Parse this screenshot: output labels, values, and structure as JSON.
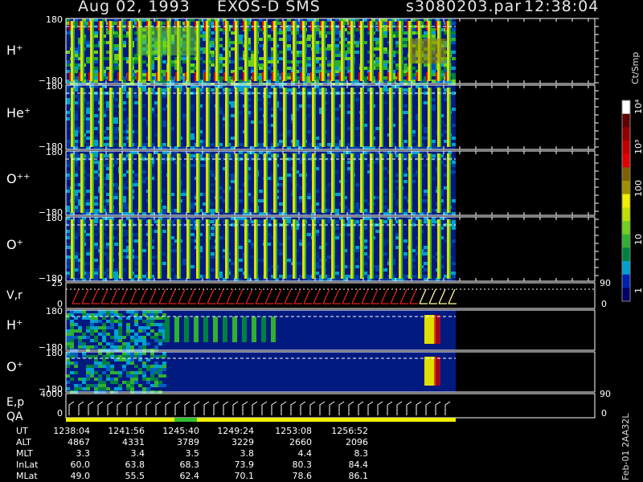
{
  "header": {
    "date": "Aug 02, 1993",
    "instrument": "EXOS-D SMS",
    "file": "s3080203.par",
    "time": "12:38:04"
  },
  "colorbar": {
    "unit": "Ct/Smp",
    "ticks": [
      "10⁴",
      "10³",
      "100",
      "10",
      "1"
    ],
    "colors": [
      "#000066",
      "#0020b0",
      "#00a0d0",
      "#008040",
      "#30b030",
      "#70d020",
      "#c0e000",
      "#f0f000",
      "#a09000",
      "#806000",
      "#e00000",
      "#c00000",
      "#900000",
      "#600000",
      "#ffffff"
    ]
  },
  "panels": {
    "h_plus": {
      "label": "H⁺",
      "ymax": "180",
      "ymin": "−180"
    },
    "he_plus": {
      "label": "He⁺",
      "ymax": "180",
      "ymin": "−180"
    },
    "o_pp": {
      "label": "O⁺⁺",
      "ymax": "180",
      "ymin": "−180"
    },
    "o_plus": {
      "label": "O⁺",
      "ymax": "180",
      "ymin": "−180"
    },
    "vr": {
      "label": "V,r",
      "ymax": "25",
      "ymin": "0",
      "rmax": "90",
      "rmin": "0"
    },
    "h_plus2": {
      "label": "H⁺",
      "ymax": "180",
      "ymin": "−180"
    },
    "o_plus2": {
      "label": "O⁺",
      "ymax": "180",
      "ymin": "−180"
    },
    "ep": {
      "label": "E,p",
      "label2": "QA",
      "ymax": "4000",
      "ymin": "0",
      "rmax": "90",
      "rmin": "0"
    }
  },
  "footer": {
    "rows": [
      {
        "label": "UT",
        "values": [
          "1238:04",
          "1241:56",
          "1245:40",
          "1249:24",
          "1253:08",
          "1256:52"
        ]
      },
      {
        "label": "ALT",
        "values": [
          "4867",
          "4331",
          "3789",
          "3229",
          "2660",
          "2096"
        ]
      },
      {
        "label": "MLT",
        "values": [
          "3.3",
          "3.4",
          "3.5",
          "3.8",
          "4.4",
          "8.3"
        ]
      },
      {
        "label": "InLat",
        "values": [
          "60.0",
          "63.8",
          "68.3",
          "73.9",
          "80.3",
          "84.4"
        ]
      },
      {
        "label": "MLat",
        "values": [
          "49.0",
          "55.5",
          "62.4",
          "70.1",
          "78.6",
          "86.1"
        ]
      }
    ],
    "side_note": "Feb-01  2AA32L"
  },
  "chart_data": {
    "type": "heatmap",
    "title": "Aug 02, 1993   EXOS-D SMS",
    "subtitle": "s3080203.par  12:38:04",
    "x": [
      "1238:04",
      "1241:56",
      "1245:40",
      "1249:24",
      "1253:08",
      "1256:52"
    ],
    "panels": [
      "H⁺",
      "He⁺",
      "O⁺⁺",
      "O⁺",
      "V,r",
      "H⁺",
      "O⁺",
      "E,p QA"
    ],
    "ylim_pitch": [
      -180,
      180
    ],
    "colorbar_range": [
      1,
      10000
    ],
    "colorbar_unit": "Ct/Smp",
    "colorbar_scale": "log"
  }
}
